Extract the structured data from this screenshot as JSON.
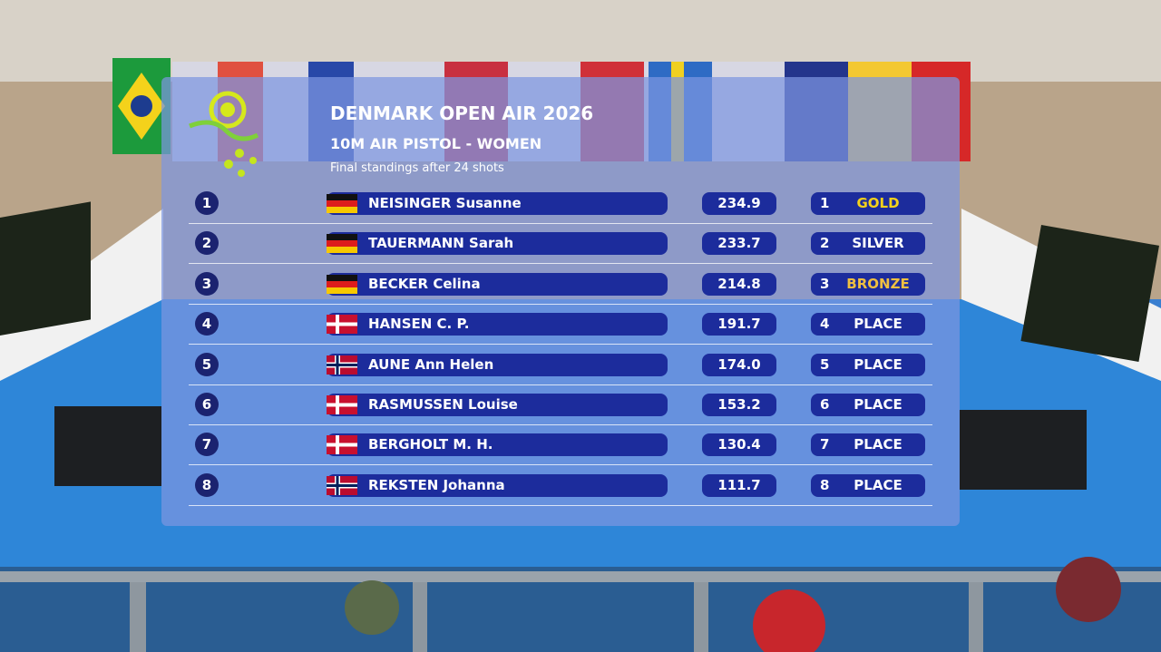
{
  "header": {
    "title": "DENMARK OPEN AIR 2026",
    "subtitle": "10M AIR PISTOL - WOMEN",
    "note": "Final standings after 24 shots"
  },
  "table": {
    "rows": [
      {
        "rank": "1",
        "name": "NEISINGER Susanne",
        "score": "234.9",
        "place_number": "1",
        "place_label": "GOLD"
      },
      {
        "rank": "2",
        "name": "TAUERMANN Sarah",
        "score": "233.7",
        "place_number": "2",
        "place_label": "SILVER"
      },
      {
        "rank": "3",
        "name": "BECKER Celina",
        "score": "214.8",
        "place_number": "3",
        "place_label": "BRONZE"
      },
      {
        "rank": "4",
        "name": "HANSEN C. P.",
        "score": "191.7",
        "place_number": "4",
        "place_label": "PLACE"
      },
      {
        "rank": "5",
        "name": "AUNE Ann Helen",
        "score": "174.0",
        "place_number": "5",
        "place_label": "PLACE"
      },
      {
        "rank": "6",
        "name": "RASMUSSEN Louise",
        "score": "153.2",
        "place_number": "6",
        "place_label": "PLACE"
      },
      {
        "rank": "7",
        "name": "BERGHOLT M. H.",
        "score": "130.4",
        "place_number": "7",
        "place_label": "PLACE"
      },
      {
        "rank": "8",
        "name": "REKSTEN Johanna",
        "score": "111.7",
        "place_number": "8",
        "place_label": "PLACE"
      }
    ]
  }
}
